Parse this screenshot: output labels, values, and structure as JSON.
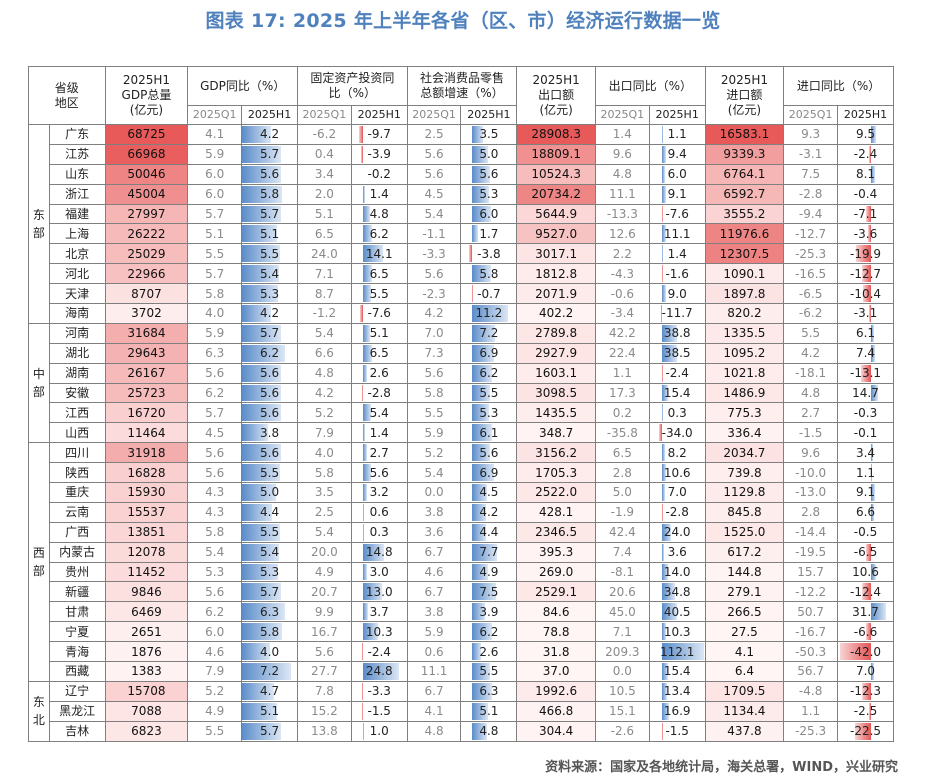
{
  "title": "图表 17: 2025 年上半年各省（区、市）经济运行数据一览",
  "source": "资料来源：国家及各地统计局，海关总署，WIND，兴业研究",
  "headers": {
    "region": "省级\n地区",
    "gdp_total": "2025H1\nGDP总量\n(亿元)",
    "gdp_yoy": "GDP同比（%）",
    "fai": "固定资产投资同\n比（%）",
    "retail": "社会消费品零售\n总额增速（%）",
    "export_amt": "2025H1\n出口额\n(亿元)",
    "export_yoy": "出口同比（%）",
    "import_amt": "2025H1\n进口额\n(亿元)",
    "import_yoy": "进口同比（%）",
    "q1": "2025Q1",
    "h1": "2025H1"
  },
  "groups": [
    {
      "name": "东部",
      "rows": [
        {
          "prov": "广东",
          "gdp": 68725,
          "gdp_q1": "4.1",
          "gdp_h1": "4.2",
          "fai_q1": "-6.2",
          "fai_h1": "-9.7",
          "ret_q1": "2.5",
          "ret_h1": "3.5",
          "exp": "28908.3",
          "exp_q1": "1.4",
          "exp_h1": "1.1",
          "imp": "16583.1",
          "imp_q1": "9.3",
          "imp_h1": "9.5"
        },
        {
          "prov": "江苏",
          "gdp": 66968,
          "gdp_q1": "5.9",
          "gdp_h1": "5.7",
          "fai_q1": "0.4",
          "fai_h1": "-3.9",
          "ret_q1": "5.6",
          "ret_h1": "5.0",
          "exp": "18809.1",
          "exp_q1": "9.6",
          "exp_h1": "9.4",
          "imp": "9339.3",
          "imp_q1": "-3.1",
          "imp_h1": "-2.4"
        },
        {
          "prov": "山东",
          "gdp": 50046,
          "gdp_q1": "6.0",
          "gdp_h1": "5.6",
          "fai_q1": "3.4",
          "fai_h1": "-0.2",
          "ret_q1": "5.6",
          "ret_h1": "5.6",
          "exp": "10524.3",
          "exp_q1": "4.8",
          "exp_h1": "6.0",
          "imp": "6764.1",
          "imp_q1": "7.5",
          "imp_h1": "8.1"
        },
        {
          "prov": "浙江",
          "gdp": 45004,
          "gdp_q1": "6.0",
          "gdp_h1": "5.8",
          "fai_q1": "2.0",
          "fai_h1": "1.4",
          "ret_q1": "4.5",
          "ret_h1": "5.3",
          "exp": "20734.2",
          "exp_q1": "11.1",
          "exp_h1": "9.1",
          "imp": "6592.7",
          "imp_q1": "-2.8",
          "imp_h1": "-0.4"
        },
        {
          "prov": "福建",
          "gdp": 27997,
          "gdp_q1": "5.7",
          "gdp_h1": "5.7",
          "fai_q1": "5.1",
          "fai_h1": "4.8",
          "ret_q1": "5.4",
          "ret_h1": "6.0",
          "exp": "5644.9",
          "exp_q1": "-13.3",
          "exp_h1": "-7.6",
          "imp": "3555.2",
          "imp_q1": "-9.4",
          "imp_h1": "-7.1"
        },
        {
          "prov": "上海",
          "gdp": 26222,
          "gdp_q1": "5.1",
          "gdp_h1": "5.1",
          "fai_q1": "6.5",
          "fai_h1": "6.2",
          "ret_q1": "-1.1",
          "ret_h1": "1.7",
          "exp": "9527.0",
          "exp_q1": "12.6",
          "exp_h1": "11.1",
          "imp": "11976.6",
          "imp_q1": "-12.7",
          "imp_h1": "-3.6"
        },
        {
          "prov": "北京",
          "gdp": 25029,
          "gdp_q1": "5.5",
          "gdp_h1": "5.5",
          "fai_q1": "24.0",
          "fai_h1": "14.1",
          "ret_q1": "-3.3",
          "ret_h1": "-3.8",
          "exp": "3017.1",
          "exp_q1": "2.2",
          "exp_h1": "1.4",
          "imp": "12307.5",
          "imp_q1": "-25.3",
          "imp_h1": "-19.9"
        },
        {
          "prov": "河北",
          "gdp": 22966,
          "gdp_q1": "5.7",
          "gdp_h1": "5.4",
          "fai_q1": "7.1",
          "fai_h1": "6.5",
          "ret_q1": "5.6",
          "ret_h1": "5.8",
          "exp": "1812.8",
          "exp_q1": "-4.3",
          "exp_h1": "-1.6",
          "imp": "1090.1",
          "imp_q1": "-16.5",
          "imp_h1": "-12.7"
        },
        {
          "prov": "天津",
          "gdp": 8707,
          "gdp_q1": "5.8",
          "gdp_h1": "5.3",
          "fai_q1": "8.7",
          "fai_h1": "5.5",
          "ret_q1": "-2.3",
          "ret_h1": "-0.7",
          "exp": "2071.9",
          "exp_q1": "-0.6",
          "exp_h1": "9.0",
          "imp": "1897.8",
          "imp_q1": "-6.5",
          "imp_h1": "-10.4"
        },
        {
          "prov": "海南",
          "gdp": 3702,
          "gdp_q1": "4.0",
          "gdp_h1": "4.2",
          "fai_q1": "-1.2",
          "fai_h1": "-7.6",
          "ret_q1": "4.2",
          "ret_h1": "11.2",
          "exp": "402.2",
          "exp_q1": "-3.4",
          "exp_h1": "-11.7",
          "imp": "820.2",
          "imp_q1": "-6.2",
          "imp_h1": "-3.1"
        }
      ]
    },
    {
      "name": "中部",
      "rows": [
        {
          "prov": "河南",
          "gdp": 31684,
          "gdp_q1": "5.9",
          "gdp_h1": "5.7",
          "fai_q1": "5.4",
          "fai_h1": "5.1",
          "ret_q1": "7.0",
          "ret_h1": "7.2",
          "exp": "2789.8",
          "exp_q1": "42.2",
          "exp_h1": "38.8",
          "imp": "1335.5",
          "imp_q1": "5.5",
          "imp_h1": "6.1"
        },
        {
          "prov": "湖北",
          "gdp": 29643,
          "gdp_q1": "6.3",
          "gdp_h1": "6.2",
          "fai_q1": "6.6",
          "fai_h1": "6.5",
          "ret_q1": "7.3",
          "ret_h1": "6.9",
          "exp": "2927.9",
          "exp_q1": "22.4",
          "exp_h1": "38.5",
          "imp": "1095.2",
          "imp_q1": "4.2",
          "imp_h1": "7.4"
        },
        {
          "prov": "湖南",
          "gdp": 26167,
          "gdp_q1": "5.6",
          "gdp_h1": "5.6",
          "fai_q1": "4.8",
          "fai_h1": "2.6",
          "ret_q1": "5.6",
          "ret_h1": "6.2",
          "exp": "1603.1",
          "exp_q1": "1.1",
          "exp_h1": "-2.4",
          "imp": "1021.8",
          "imp_q1": "-18.1",
          "imp_h1": "-13.1"
        },
        {
          "prov": "安徽",
          "gdp": 25723,
          "gdp_q1": "6.2",
          "gdp_h1": "5.6",
          "fai_q1": "4.2",
          "fai_h1": "-2.8",
          "ret_q1": "5.8",
          "ret_h1": "5.5",
          "exp": "3098.5",
          "exp_q1": "17.3",
          "exp_h1": "15.4",
          "imp": "1486.9",
          "imp_q1": "4.8",
          "imp_h1": "14.7"
        },
        {
          "prov": "江西",
          "gdp": 16720,
          "gdp_q1": "5.7",
          "gdp_h1": "5.6",
          "fai_q1": "5.2",
          "fai_h1": "5.4",
          "ret_q1": "5.5",
          "ret_h1": "5.3",
          "exp": "1435.5",
          "exp_q1": "0.2",
          "exp_h1": "0.3",
          "imp": "775.3",
          "imp_q1": "2.7",
          "imp_h1": "-0.3"
        },
        {
          "prov": "山西",
          "gdp": 11464,
          "gdp_q1": "4.5",
          "gdp_h1": "3.8",
          "fai_q1": "7.9",
          "fai_h1": "1.4",
          "ret_q1": "5.9",
          "ret_h1": "6.1",
          "exp": "348.7",
          "exp_q1": "-35.8",
          "exp_h1": "-34.0",
          "imp": "336.4",
          "imp_q1": "-1.5",
          "imp_h1": "-0.1"
        }
      ]
    },
    {
      "name": "西部",
      "rows": [
        {
          "prov": "四川",
          "gdp": 31918,
          "gdp_q1": "5.6",
          "gdp_h1": "5.6",
          "fai_q1": "4.0",
          "fai_h1": "2.7",
          "ret_q1": "5.2",
          "ret_h1": "5.6",
          "exp": "3156.2",
          "exp_q1": "6.5",
          "exp_h1": "8.2",
          "imp": "2034.7",
          "imp_q1": "9.6",
          "imp_h1": "3.4"
        },
        {
          "prov": "陕西",
          "gdp": 16828,
          "gdp_q1": "5.6",
          "gdp_h1": "5.5",
          "fai_q1": "5.8",
          "fai_h1": "5.6",
          "ret_q1": "5.4",
          "ret_h1": "6.9",
          "exp": "1705.3",
          "exp_q1": "2.8",
          "exp_h1": "10.6",
          "imp": "739.8",
          "imp_q1": "-10.0",
          "imp_h1": "1.1"
        },
        {
          "prov": "重庆",
          "gdp": 15930,
          "gdp_q1": "4.3",
          "gdp_h1": "5.0",
          "fai_q1": "3.5",
          "fai_h1": "3.2",
          "ret_q1": "0.0",
          "ret_h1": "4.5",
          "exp": "2522.0",
          "exp_q1": "5.0",
          "exp_h1": "7.0",
          "imp": "1129.8",
          "imp_q1": "-13.0",
          "imp_h1": "9.1"
        },
        {
          "prov": "云南",
          "gdp": 15537,
          "gdp_q1": "4.3",
          "gdp_h1": "4.4",
          "fai_q1": "2.5",
          "fai_h1": "0.6",
          "ret_q1": "3.8",
          "ret_h1": "4.2",
          "exp": "428.1",
          "exp_q1": "-1.9",
          "exp_h1": "-2.8",
          "imp": "845.8",
          "imp_q1": "2.8",
          "imp_h1": "6.6"
        },
        {
          "prov": "广西",
          "gdp": 13851,
          "gdp_q1": "5.8",
          "gdp_h1": "5.5",
          "fai_q1": "5.4",
          "fai_h1": "0.3",
          "ret_q1": "3.6",
          "ret_h1": "4.4",
          "exp": "2346.5",
          "exp_q1": "42.4",
          "exp_h1": "24.0",
          "imp": "1525.0",
          "imp_q1": "-14.4",
          "imp_h1": "-0.5"
        },
        {
          "prov": "内蒙古",
          "gdp": 12078,
          "gdp_q1": "5.4",
          "gdp_h1": "5.4",
          "fai_q1": "20.0",
          "fai_h1": "14.8",
          "ret_q1": "6.7",
          "ret_h1": "7.7",
          "exp": "395.3",
          "exp_q1": "7.4",
          "exp_h1": "3.6",
          "imp": "617.2",
          "imp_q1": "-19.5",
          "imp_h1": "-6.5"
        },
        {
          "prov": "贵州",
          "gdp": 11452,
          "gdp_q1": "5.3",
          "gdp_h1": "5.3",
          "fai_q1": "4.9",
          "fai_h1": "3.0",
          "ret_q1": "4.6",
          "ret_h1": "4.9",
          "exp": "269.0",
          "exp_q1": "-8.1",
          "exp_h1": "14.0",
          "imp": "144.8",
          "imp_q1": "15.7",
          "imp_h1": "10.6"
        },
        {
          "prov": "新疆",
          "gdp": 9846,
          "gdp_q1": "5.6",
          "gdp_h1": "5.7",
          "fai_q1": "20.7",
          "fai_h1": "13.0",
          "ret_q1": "6.7",
          "ret_h1": "7.5",
          "exp": "2529.1",
          "exp_q1": "20.6",
          "exp_h1": "34.8",
          "imp": "279.1",
          "imp_q1": "-12.2",
          "imp_h1": "-12.4"
        },
        {
          "prov": "甘肃",
          "gdp": 6469,
          "gdp_q1": "6.2",
          "gdp_h1": "6.3",
          "fai_q1": "9.9",
          "fai_h1": "3.7",
          "ret_q1": "3.8",
          "ret_h1": "3.9",
          "exp": "84.6",
          "exp_q1": "45.0",
          "exp_h1": "40.5",
          "imp": "266.5",
          "imp_q1": "50.7",
          "imp_h1": "31.7"
        },
        {
          "prov": "宁夏",
          "gdp": 2651,
          "gdp_q1": "6.0",
          "gdp_h1": "5.8",
          "fai_q1": "16.7",
          "fai_h1": "10.3",
          "ret_q1": "5.9",
          "ret_h1": "6.2",
          "exp": "78.8",
          "exp_q1": "7.1",
          "exp_h1": "10.3",
          "imp": "27.5",
          "imp_q1": "-16.7",
          "imp_h1": "-6.6"
        },
        {
          "prov": "青海",
          "gdp": 1876,
          "gdp_q1": "4.6",
          "gdp_h1": "4.0",
          "fai_q1": "5.6",
          "fai_h1": "-2.4",
          "ret_q1": "0.6",
          "ret_h1": "2.6",
          "exp": "31.8",
          "exp_q1": "209.3",
          "exp_h1": "112.1",
          "imp": "4.1",
          "imp_q1": "-50.3",
          "imp_h1": "-42.0"
        },
        {
          "prov": "西藏",
          "gdp": 1383,
          "gdp_q1": "7.9",
          "gdp_h1": "7.2",
          "fai_q1": "27.7",
          "fai_h1": "24.8",
          "ret_q1": "11.1",
          "ret_h1": "5.5",
          "exp": "37.0",
          "exp_q1": "0.0",
          "exp_h1": "15.4",
          "imp": "6.4",
          "imp_q1": "56.7",
          "imp_h1": "7.0"
        }
      ]
    },
    {
      "name": "东北",
      "rows": [
        {
          "prov": "辽宁",
          "gdp": 15708,
          "gdp_q1": "5.2",
          "gdp_h1": "4.7",
          "fai_q1": "7.8",
          "fai_h1": "-3.3",
          "ret_q1": "6.7",
          "ret_h1": "6.3",
          "exp": "1992.6",
          "exp_q1": "10.5",
          "exp_h1": "13.4",
          "imp": "1709.5",
          "imp_q1": "-4.8",
          "imp_h1": "-12.3"
        },
        {
          "prov": "黑龙江",
          "gdp": 7088,
          "gdp_q1": "4.9",
          "gdp_h1": "5.1",
          "fai_q1": "15.2",
          "fai_h1": "-1.5",
          "ret_q1": "4.1",
          "ret_h1": "5.1",
          "exp": "466.8",
          "exp_q1": "15.1",
          "exp_h1": "16.9",
          "imp": "1134.4",
          "imp_q1": "1.1",
          "imp_h1": "-2.5"
        },
        {
          "prov": "吉林",
          "gdp": 6823,
          "gdp_q1": "5.5",
          "gdp_h1": "5.7",
          "fai_q1": "13.8",
          "fai_h1": "1.0",
          "ret_q1": "4.8",
          "ret_h1": "4.8",
          "exp": "304.4",
          "exp_q1": "-2.6",
          "exp_h1": "-1.5",
          "imp": "437.8",
          "imp_q1": "-25.3",
          "imp_h1": "-22.5"
        }
      ]
    }
  ]
}
